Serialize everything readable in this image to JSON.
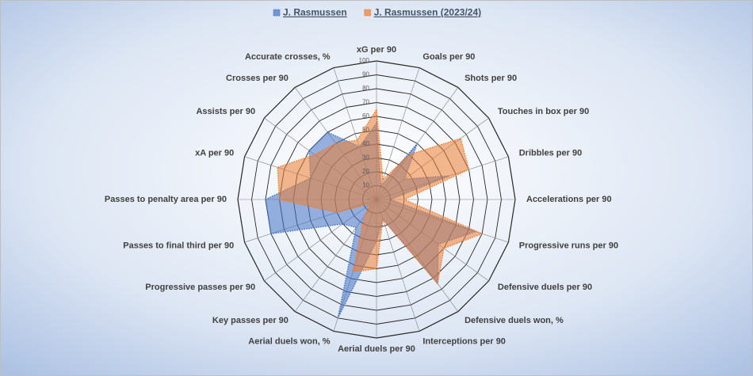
{
  "chart_data": {
    "type": "radar",
    "categories": [
      "xG per 90",
      "Goals per 90",
      "Shots per 90",
      "Touches in box per 90",
      "Dribbles per 90",
      "Accelerations per 90",
      "Progressive runs per 90",
      "Defensive duels per 90",
      "Defensive duels won, %",
      "Interceptions per 90",
      "Aerial duels per 90",
      "Aerial duels won, %",
      "Key passes per 90",
      "Progressive passes per 90",
      "Passes to final third per 90",
      "Passes to penalty area per 90",
      "xA per 90",
      "Assists per 90",
      "Crosses per 90",
      "Accurate crosses, %"
    ],
    "series": [
      {
        "name": "J. Rasmussen",
        "color": "#4472c4",
        "values": [
          55,
          10,
          50,
          25,
          55,
          10,
          75,
          55,
          75,
          15,
          30,
          90,
          25,
          30,
          80,
          80,
          50,
          60,
          60,
          40
        ]
      },
      {
        "name": "J. Rasmussen (2023/24)",
        "color": "#ed7d31",
        "values": [
          65,
          15,
          40,
          75,
          70,
          20,
          80,
          60,
          75,
          15,
          50,
          55,
          15,
          5,
          30,
          70,
          75,
          55,
          50,
          45
        ]
      }
    ],
    "rlim": [
      0,
      100
    ],
    "rticks": [
      {
        "value": 0,
        "label": "-"
      },
      10,
      20,
      30,
      40,
      50,
      60,
      70,
      80,
      90,
      100
    ],
    "legend": "top"
  }
}
